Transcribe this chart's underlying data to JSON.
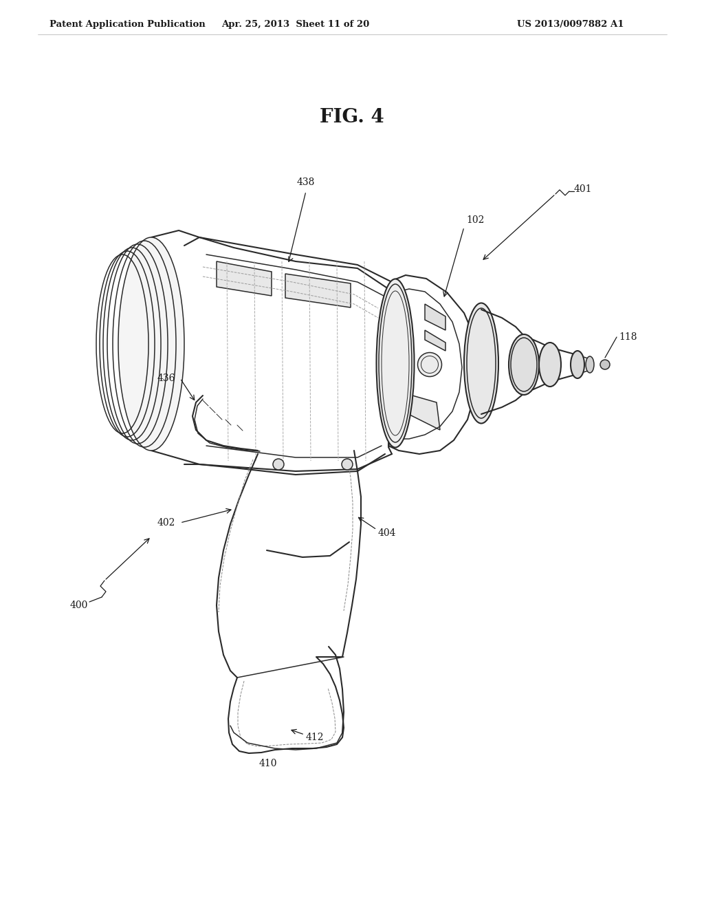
{
  "bg_color": "#ffffff",
  "header_left": "Patent Application Publication",
  "header_center": "Apr. 25, 2013  Sheet 11 of 20",
  "header_right": "US 2013/0097882 A1",
  "figure_label": "FIG. 4",
  "text_color": "#1a1a1a",
  "line_color": "#2a2a2a",
  "font_size_header": 9.5,
  "font_size_label": 10,
  "font_size_fig": 20,
  "page_width": 10.24,
  "page_height": 13.2,
  "dpi": 100
}
